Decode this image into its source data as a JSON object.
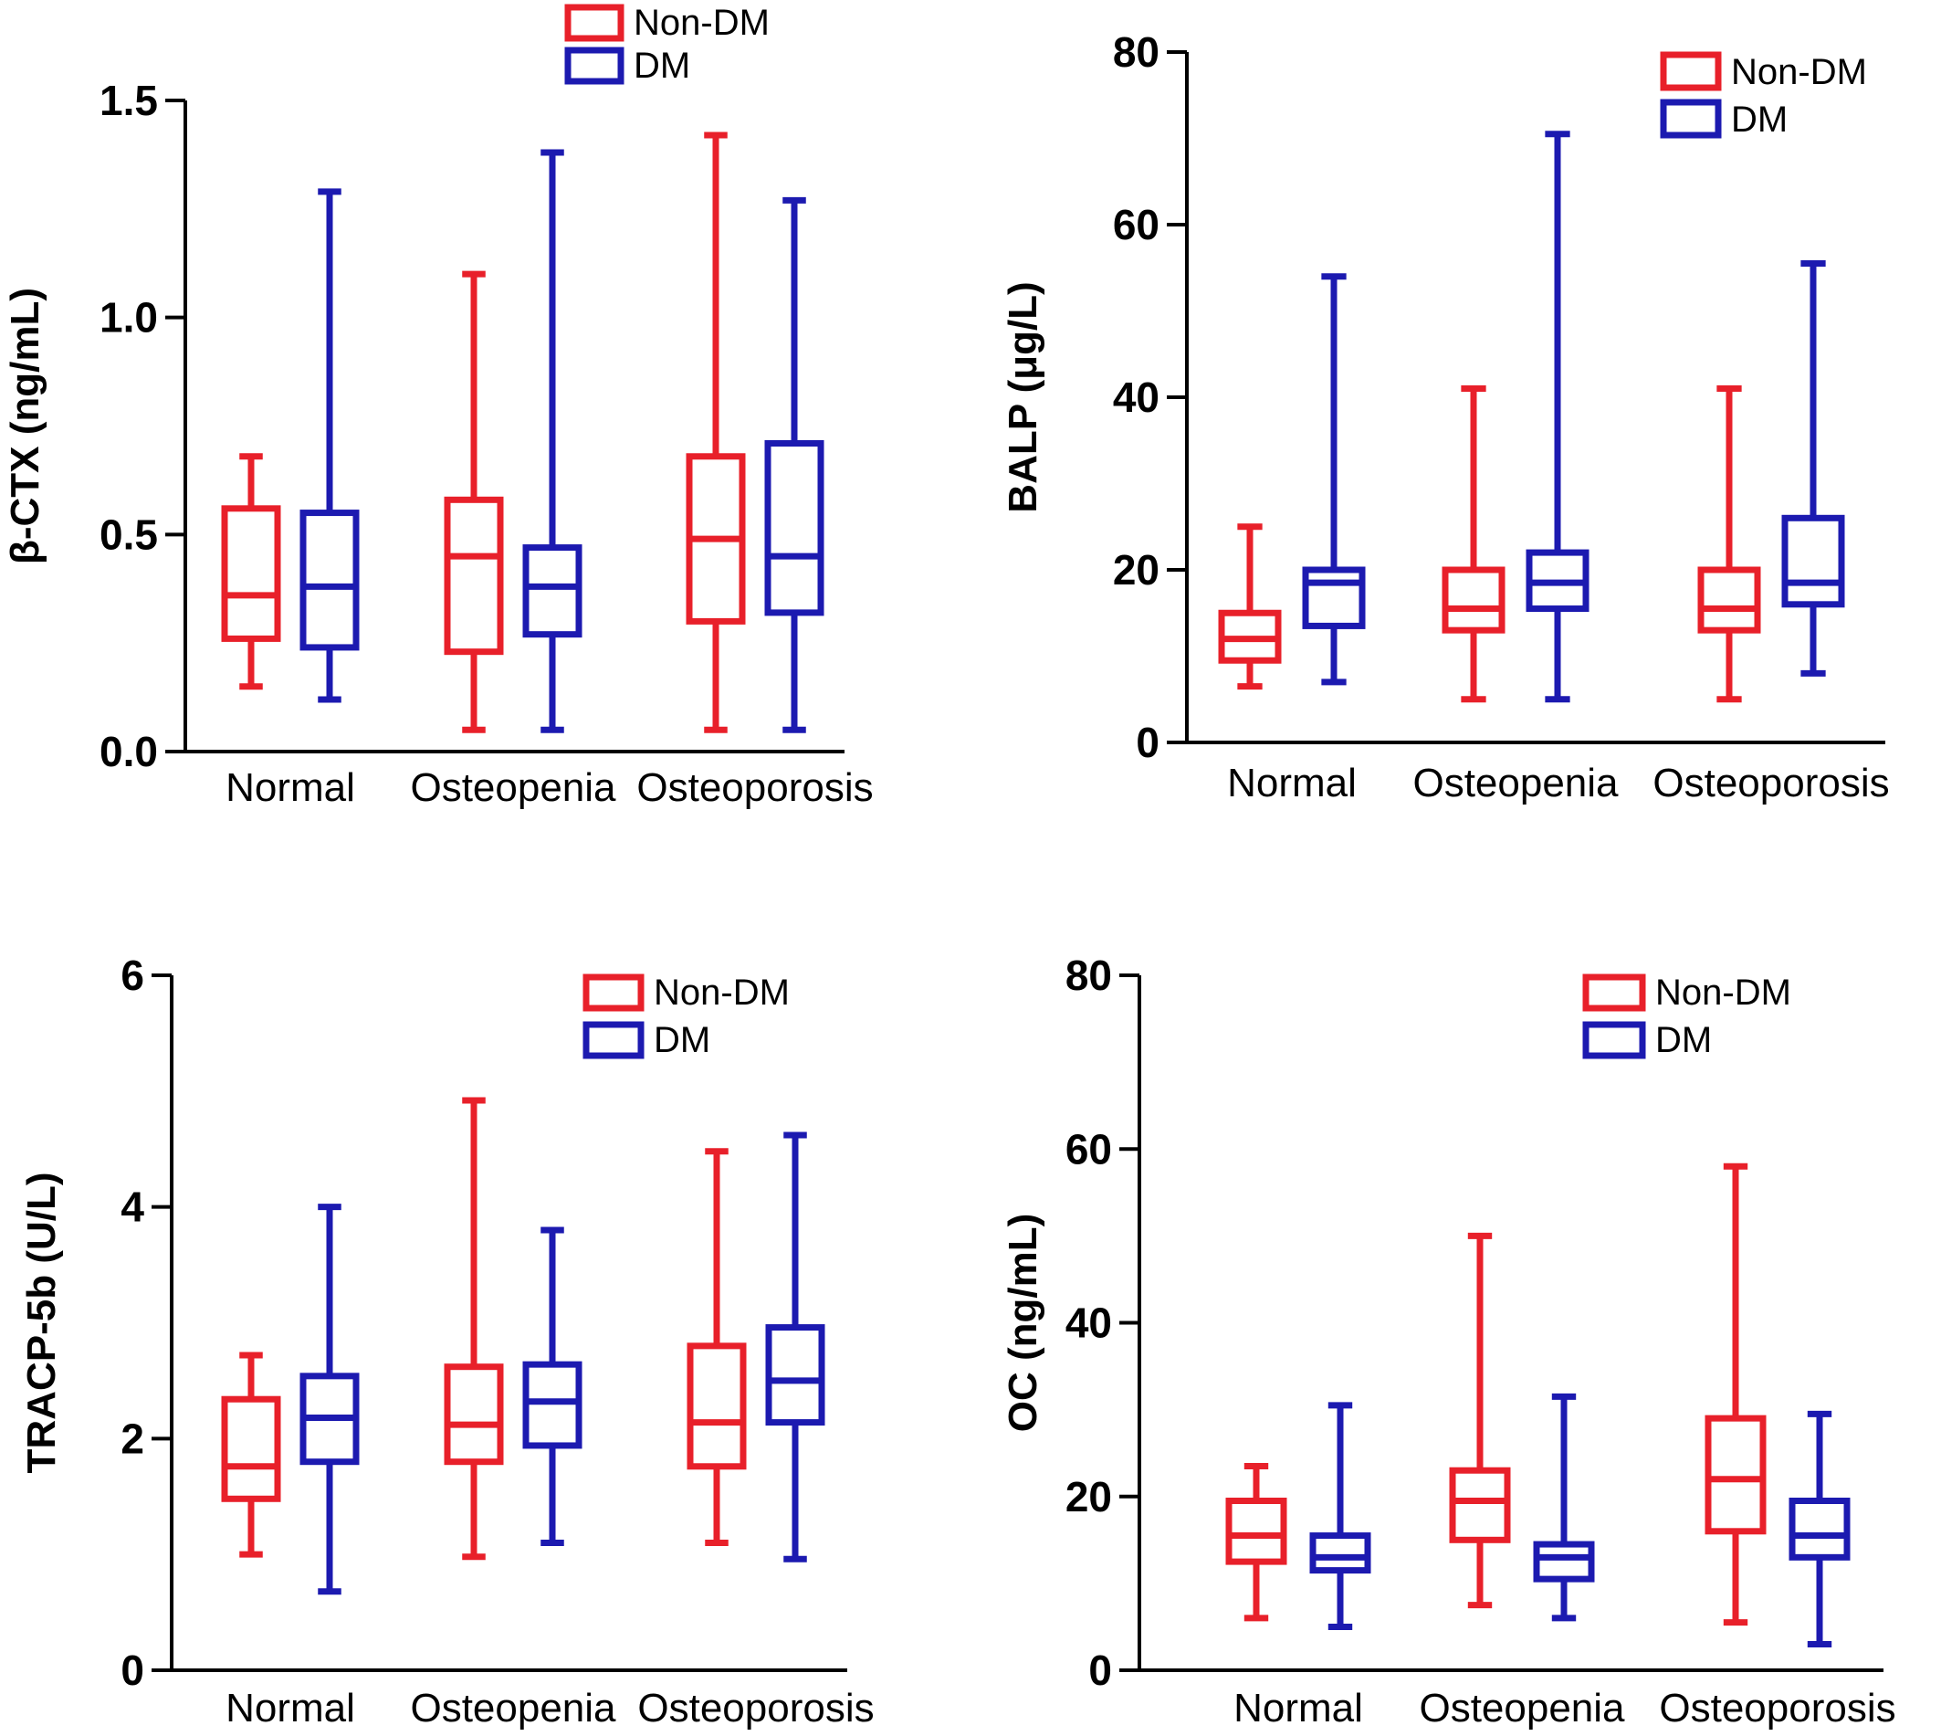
{
  "colors": {
    "non_dm": "#e8202a",
    "dm": "#1c1ab0",
    "axis": "#000000"
  },
  "legend": {
    "non_dm": "Non-DM",
    "dm": "DM"
  },
  "chart_data": [
    {
      "type": "boxplot",
      "ylabel": "β-CTX (ng/mL)",
      "ylim": [
        0,
        1.5
      ],
      "yticks": [
        0.0,
        0.5,
        1.0,
        1.5
      ],
      "ytick_labels": [
        "0.0",
        "0.5",
        "1.0",
        "1.5"
      ],
      "categories": [
        "Normal",
        "Osteopenia",
        "Osteoporosis"
      ],
      "legend_position": "top-center",
      "series": [
        {
          "name": "Non-DM",
          "boxes": [
            {
              "min": 0.15,
              "q1": 0.26,
              "median": 0.36,
              "q3": 0.56,
              "max": 0.68
            },
            {
              "min": 0.05,
              "q1": 0.23,
              "median": 0.45,
              "q3": 0.58,
              "max": 1.1
            },
            {
              "min": 0.05,
              "q1": 0.3,
              "median": 0.49,
              "q3": 0.68,
              "max": 1.42
            }
          ]
        },
        {
          "name": "DM",
          "boxes": [
            {
              "min": 0.12,
              "q1": 0.24,
              "median": 0.38,
              "q3": 0.55,
              "max": 1.29
            },
            {
              "min": 0.05,
              "q1": 0.27,
              "median": 0.38,
              "q3": 0.47,
              "max": 1.38
            },
            {
              "min": 0.05,
              "q1": 0.32,
              "median": 0.45,
              "q3": 0.71,
              "max": 1.27
            }
          ]
        }
      ]
    },
    {
      "type": "boxplot",
      "ylabel": "BALP (μg/L)",
      "ylim": [
        0,
        80
      ],
      "yticks": [
        0,
        20,
        40,
        60,
        80
      ],
      "ytick_labels": [
        "0",
        "20",
        "40",
        "60",
        "80"
      ],
      "categories": [
        "Normal",
        "Osteopenia",
        "Osteoporosis"
      ],
      "legend_position": "top-right",
      "series": [
        {
          "name": "Non-DM",
          "boxes": [
            {
              "min": 6.5,
              "q1": 9.5,
              "median": 12,
              "q3": 15,
              "max": 25
            },
            {
              "min": 5,
              "q1": 13,
              "median": 15.5,
              "q3": 20,
              "max": 41
            },
            {
              "min": 5,
              "q1": 13,
              "median": 15.5,
              "q3": 20,
              "max": 41
            }
          ]
        },
        {
          "name": "DM",
          "boxes": [
            {
              "min": 7,
              "q1": 13.5,
              "median": 18.5,
              "q3": 20,
              "max": 54
            },
            {
              "min": 5,
              "q1": 15.5,
              "median": 18.5,
              "q3": 22,
              "max": 70.5
            },
            {
              "min": 8,
              "q1": 16,
              "median": 18.5,
              "q3": 26,
              "max": 55.5
            }
          ]
        }
      ]
    },
    {
      "type": "boxplot",
      "ylabel": "TRACP-5b (U/L)",
      "ylim": [
        0,
        6
      ],
      "yticks": [
        0,
        2,
        4,
        6
      ],
      "ytick_labels": [
        "0",
        "2",
        "4",
        "6"
      ],
      "categories": [
        "Normal",
        "Osteopenia",
        "Osteoporosis"
      ],
      "legend_position": "top-right",
      "series": [
        {
          "name": "Non-DM",
          "boxes": [
            {
              "min": 1.0,
              "q1": 1.48,
              "median": 1.76,
              "q3": 2.34,
              "max": 2.72
            },
            {
              "min": 0.98,
              "q1": 1.8,
              "median": 2.12,
              "q3": 2.62,
              "max": 4.92
            },
            {
              "min": 1.1,
              "q1": 1.76,
              "median": 2.14,
              "q3": 2.8,
              "max": 4.48
            }
          ]
        },
        {
          "name": "DM",
          "boxes": [
            {
              "min": 0.68,
              "q1": 1.8,
              "median": 2.18,
              "q3": 2.54,
              "max": 4.0
            },
            {
              "min": 1.1,
              "q1": 1.94,
              "median": 2.32,
              "q3": 2.64,
              "max": 3.8
            },
            {
              "min": 0.96,
              "q1": 2.14,
              "median": 2.5,
              "q3": 2.96,
              "max": 4.62
            }
          ]
        }
      ]
    },
    {
      "type": "boxplot",
      "ylabel": "OC (ng/mL)",
      "ylim": [
        0,
        80
      ],
      "yticks": [
        0,
        20,
        40,
        60,
        80
      ],
      "ytick_labels": [
        "0",
        "20",
        "40",
        "60",
        "80"
      ],
      "categories": [
        "Normal",
        "Osteopenia",
        "Osteoporosis"
      ],
      "legend_position": "top-right",
      "series": [
        {
          "name": "Non-DM",
          "boxes": [
            {
              "min": 6,
              "q1": 12.5,
              "median": 15.5,
              "q3": 19.5,
              "max": 23.5
            },
            {
              "min": 7.5,
              "q1": 15,
              "median": 19.5,
              "q3": 23,
              "max": 50
            },
            {
              "min": 5.5,
              "q1": 16,
              "median": 22,
              "q3": 29,
              "max": 58
            }
          ]
        },
        {
          "name": "DM",
          "boxes": [
            {
              "min": 5,
              "q1": 11.5,
              "median": 13,
              "q3": 15.5,
              "max": 30.5
            },
            {
              "min": 6,
              "q1": 10.5,
              "median": 13,
              "q3": 14.5,
              "max": 31.5
            },
            {
              "min": 3,
              "q1": 13,
              "median": 15.5,
              "q3": 19.5,
              "max": 29.5
            }
          ]
        }
      ]
    }
  ]
}
